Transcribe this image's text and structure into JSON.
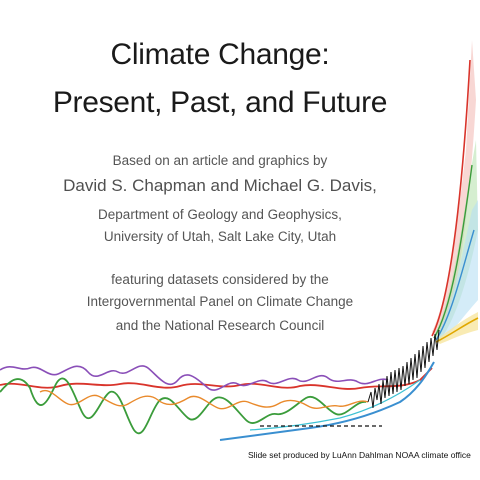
{
  "slide": {
    "title_line_1": "Climate Change:",
    "title_line_2": "Present, Past, and Future",
    "attribution_intro": "Based on an article and graphics by",
    "authors": "David S. Chapman and Michael G. Davis,",
    "department": "Department of Geology and Geophysics,",
    "university": "University of Utah, Salt Lake City, Utah",
    "featuring_line_1": "featuring datasets considered by the",
    "featuring_line_2": "Intergovernmental Panel on Climate Change",
    "featuring_line_3": "and the National Research Council",
    "credit": "Slide set produced by LuAnn Dahlman NOAA climate office"
  },
  "graphic": {
    "colors": {
      "red": "#d9342b",
      "green": "#3b9c3b",
      "purple": "#8a4fb8",
      "orange": "#e98a2c",
      "blue": "#3a8fd0",
      "yellow": "#f0c419",
      "cyan": "#3ec1d3",
      "black": "#111111"
    }
  }
}
